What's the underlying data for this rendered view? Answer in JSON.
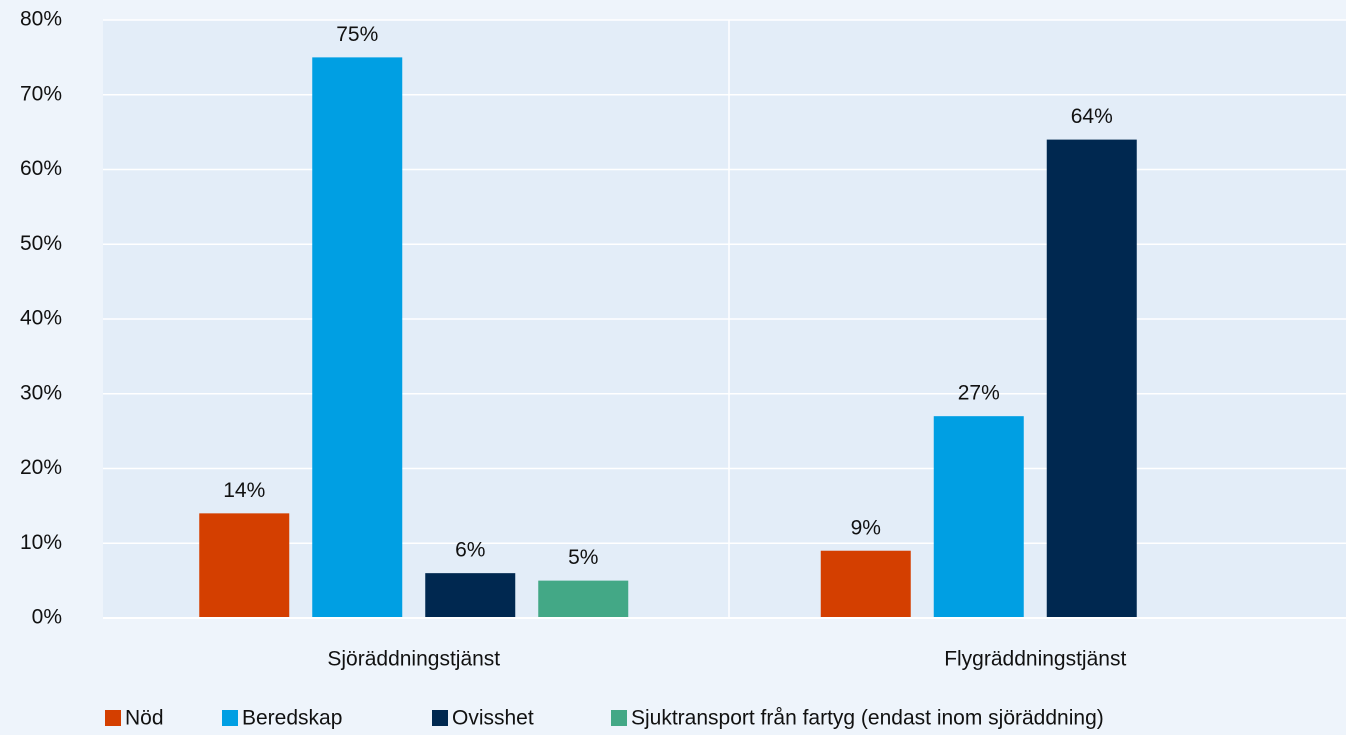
{
  "chart_data": {
    "type": "bar",
    "categories": [
      "Sjöräddningstjänst",
      "Flygräddningstjänst"
    ],
    "series": [
      {
        "name": "Nöd",
        "color": "#d43f00",
        "values": [
          14,
          9
        ],
        "value_labels": [
          "14%",
          "9%"
        ]
      },
      {
        "name": "Beredskap",
        "color": "#009fe3",
        "values": [
          75,
          27
        ],
        "value_labels": [
          "75%",
          "27%"
        ]
      },
      {
        "name": "Ovisshet",
        "color": "#002850",
        "values": [
          6,
          64
        ],
        "value_labels": [
          "6%",
          "64%"
        ]
      },
      {
        "name": "Sjuktransport från fartyg (endast inom sjöräddning)",
        "color": "#43a886",
        "values": [
          5,
          null
        ],
        "value_labels": [
          "5%",
          null
        ]
      }
    ],
    "ylim": [
      0,
      80
    ],
    "yticks": [
      {
        "value": 0,
        "label": "0%"
      },
      {
        "value": 10,
        "label": "10%"
      },
      {
        "value": 20,
        "label": "20%"
      },
      {
        "value": 30,
        "label": "30%"
      },
      {
        "value": 40,
        "label": "40%"
      },
      {
        "value": 50,
        "label": "50%"
      },
      {
        "value": 60,
        "label": "60%"
      },
      {
        "value": 70,
        "label": "70%"
      },
      {
        "value": 80,
        "label": "80%"
      }
    ],
    "grid": true,
    "legend": "bottom"
  }
}
